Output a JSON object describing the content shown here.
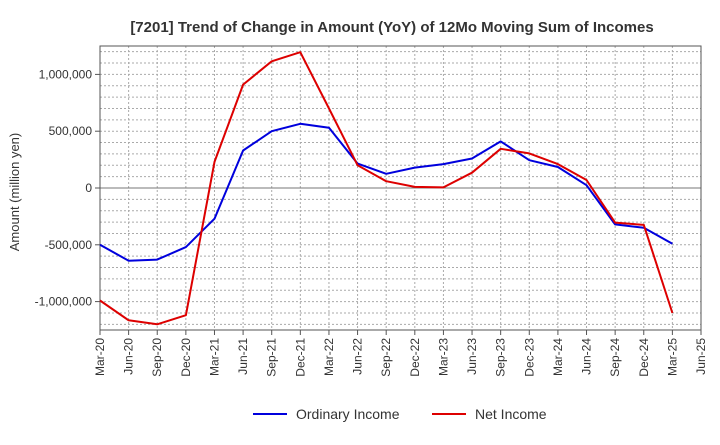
{
  "chart_data": {
    "type": "line",
    "title": "[7201]  Trend of Change in Amount (YoY) of 12Mo Moving Sum of Incomes",
    "xlabel": "",
    "ylabel": "Amount (million yen)",
    "x": [
      "Mar-20",
      "Jun-20",
      "Sep-20",
      "Dec-20",
      "Mar-21",
      "Jun-21",
      "Sep-21",
      "Dec-21",
      "Mar-22",
      "Jun-22",
      "Sep-22",
      "Dec-22",
      "Mar-23",
      "Jun-23",
      "Sep-23",
      "Dec-23",
      "Mar-24",
      "Jun-24",
      "Sep-24",
      "Dec-24",
      "Mar-25",
      "Jun-25"
    ],
    "ylim": [
      -1250000,
      1250000
    ],
    "yticks": [
      -1000000,
      -500000,
      0,
      500000,
      1000000
    ],
    "ytick_labels": [
      "-1,000,000",
      "-500,000",
      "0",
      "500,000",
      "1,000,000"
    ],
    "grid": true,
    "legend_position": "bottom",
    "series": [
      {
        "name": "Ordinary Income",
        "color": "#0000dd",
        "values": [
          -500000,
          -640000,
          -630000,
          -520000,
          -270000,
          330000,
          500000,
          565000,
          530000,
          215000,
          125000,
          180000,
          210000,
          260000,
          410000,
          245000,
          185000,
          25000,
          -320000,
          -350000,
          -490000,
          null
        ]
      },
      {
        "name": "Net Income",
        "color": "#dd0000",
        "values": [
          -990000,
          -1165000,
          -1200000,
          -1120000,
          230000,
          910000,
          1115000,
          1195000,
          700000,
          200000,
          60000,
          10000,
          5000,
          135000,
          345000,
          305000,
          210000,
          70000,
          -305000,
          -325000,
          -1100000,
          null
        ]
      }
    ]
  }
}
